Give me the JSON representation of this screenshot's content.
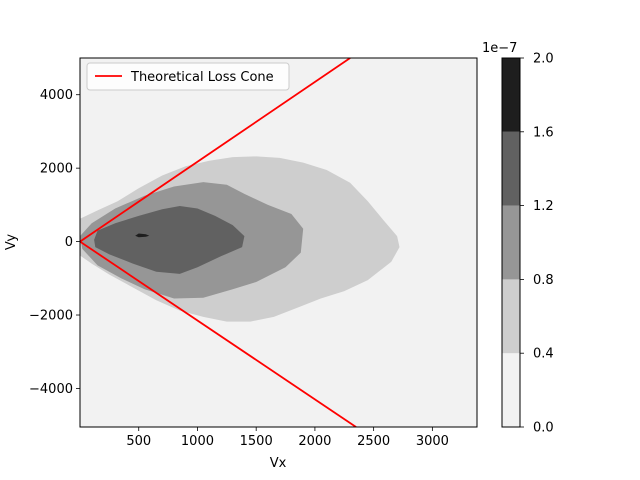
{
  "chart_data": {
    "type": "contour",
    "xlabel": "Vx",
    "ylabel": "Vy",
    "xlim": [
      0,
      3380
    ],
    "ylim": [
      -5050,
      5000
    ],
    "xticks": [
      500,
      1000,
      1500,
      2000,
      2500,
      3000
    ],
    "xtick_labels": [
      "500",
      "1000",
      "1500",
      "2000",
      "2500",
      "3000"
    ],
    "yticks": [
      4000,
      2000,
      0,
      -2000,
      -4000
    ],
    "ytick_labels": [
      "4000",
      "2000",
      "0",
      "−2000",
      "−4000"
    ],
    "grid": false,
    "legend": {
      "placement": "upper left",
      "entries": [
        {
          "label": "Theoretical Loss Cone",
          "color": "#ff0000"
        }
      ]
    },
    "colorbar": {
      "offset_label": "1e−7",
      "levels": [
        0.0,
        0.4,
        0.8,
        1.2,
        1.6,
        2.0
      ],
      "tick_labels": [
        "0.0",
        "0.4",
        "0.8",
        "1.2",
        "1.6",
        "2.0"
      ],
      "colors": [
        "#f2f2f2",
        "#cecece",
        "#969696",
        "#616161",
        "#1e1e1e"
      ]
    },
    "loss_cone_lines": [
      {
        "name": "Theoretical Loss Cone",
        "points": [
          [
            0,
            0
          ],
          [
            2300,
            5000
          ]
        ]
      },
      {
        "name": "Theoretical Loss Cone",
        "points": [
          [
            0,
            0
          ],
          [
            2350,
            -5050
          ]
        ]
      }
    ],
    "contour_regions": [
      {
        "level": "0.4-0.8",
        "color": "#cecece",
        "points": [
          [
            0,
            620
          ],
          [
            150,
            850
          ],
          [
            320,
            1100
          ],
          [
            500,
            1450
          ],
          [
            700,
            1800
          ],
          [
            900,
            2050
          ],
          [
            1100,
            2200
          ],
          [
            1300,
            2300
          ],
          [
            1500,
            2320
          ],
          [
            1700,
            2280
          ],
          [
            1900,
            2150
          ],
          [
            2100,
            1950
          ],
          [
            2300,
            1600
          ],
          [
            2450,
            1100
          ],
          [
            2580,
            600
          ],
          [
            2700,
            150
          ],
          [
            2720,
            -150
          ],
          [
            2650,
            -550
          ],
          [
            2450,
            -1050
          ],
          [
            2250,
            -1350
          ],
          [
            2050,
            -1550
          ],
          [
            1850,
            -1800
          ],
          [
            1650,
            -2050
          ],
          [
            1450,
            -2180
          ],
          [
            1250,
            -2180
          ],
          [
            1050,
            -2050
          ],
          [
            850,
            -1880
          ],
          [
            650,
            -1600
          ],
          [
            450,
            -1250
          ],
          [
            250,
            -900
          ],
          [
            100,
            -600
          ],
          [
            0,
            -380
          ]
        ]
      },
      {
        "level": "0.8-1.2",
        "color": "#969696",
        "points": [
          [
            0,
            150
          ],
          [
            100,
            500
          ],
          [
            300,
            900
          ],
          [
            550,
            1250
          ],
          [
            800,
            1500
          ],
          [
            1050,
            1620
          ],
          [
            1250,
            1550
          ],
          [
            1400,
            1300
          ],
          [
            1600,
            1000
          ],
          [
            1800,
            750
          ],
          [
            1900,
            350
          ],
          [
            1880,
            -300
          ],
          [
            1750,
            -700
          ],
          [
            1500,
            -1100
          ],
          [
            1300,
            -1300
          ],
          [
            1050,
            -1530
          ],
          [
            800,
            -1550
          ],
          [
            550,
            -1300
          ],
          [
            350,
            -1000
          ],
          [
            150,
            -650
          ],
          [
            20,
            -200
          ]
        ]
      },
      {
        "level": "1.2-1.6",
        "color": "#616161",
        "points": [
          [
            120,
            50
          ],
          [
            150,
            300
          ],
          [
            300,
            500
          ],
          [
            500,
            700
          ],
          [
            700,
            880
          ],
          [
            850,
            970
          ],
          [
            1000,
            900
          ],
          [
            1150,
            700
          ],
          [
            1300,
            450
          ],
          [
            1400,
            150
          ],
          [
            1380,
            -150
          ],
          [
            1200,
            -400
          ],
          [
            1000,
            -700
          ],
          [
            850,
            -880
          ],
          [
            650,
            -820
          ],
          [
            450,
            -600
          ],
          [
            250,
            -350
          ],
          [
            130,
            -150
          ]
        ]
      },
      {
        "level": "1.6-2.0",
        "color": "#1e1e1e",
        "points": [
          [
            470,
            160
          ],
          [
            500,
            220
          ],
          [
            560,
            200
          ],
          [
            590,
            160
          ],
          [
            560,
            130
          ],
          [
            500,
            120
          ]
        ]
      }
    ]
  }
}
